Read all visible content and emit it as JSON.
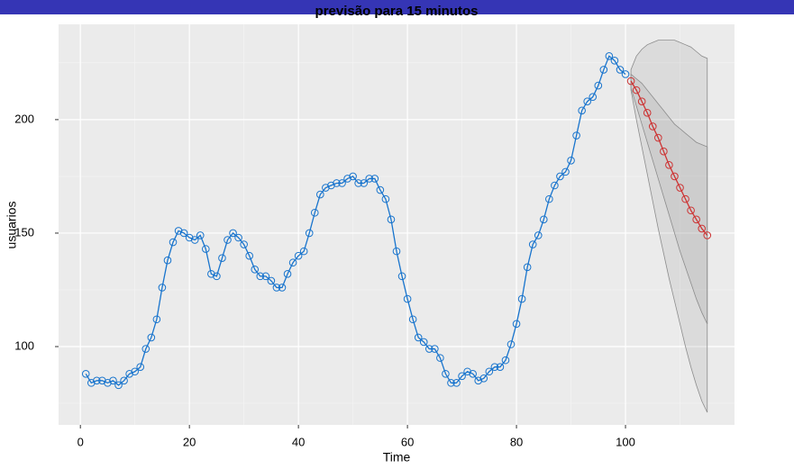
{
  "chart_data": {
    "type": "line",
    "title": "previsão para 15 minutos",
    "x_label": "Time",
    "y_label": "usuarios",
    "xlim": [
      -4,
      120
    ],
    "ylim": [
      65.5,
      242
    ],
    "xticks": [
      0,
      20,
      40,
      60,
      80,
      100
    ],
    "yticks": [
      100,
      150,
      200
    ],
    "xminor": [
      10,
      30,
      50,
      70,
      90,
      110
    ],
    "yminor": [
      75,
      125,
      175,
      225
    ],
    "grid": true,
    "bands": [
      {
        "color": "#808080",
        "x": [
          101,
          102,
          103,
          104,
          105,
          106,
          107,
          108,
          109,
          110,
          111,
          112,
          113,
          114,
          115
        ],
        "upper": [
          222,
          228,
          231,
          233,
          234,
          235,
          235,
          235,
          235,
          234,
          233,
          232,
          230,
          228,
          227
        ],
        "lower": [
          213,
          200,
          188,
          176,
          164,
          152,
          141,
          130,
          120,
          110,
          100,
          91,
          83,
          76,
          71
        ]
      },
      {
        "color": "#808080",
        "x": [
          101,
          102,
          103,
          104,
          105,
          106,
          107,
          108,
          109,
          110,
          111,
          112,
          113,
          114,
          115
        ],
        "upper": [
          220,
          218,
          216,
          213,
          210,
          207,
          204,
          201,
          198,
          196,
          194,
          192,
          190,
          189,
          188
        ],
        "lower": [
          214,
          206,
          198,
          190,
          182,
          174,
          166,
          158,
          150,
          142,
          135,
          128,
          121,
          115,
          110
        ]
      }
    ],
    "series": [
      {
        "color": "#1874cd",
        "x": [
          1,
          2,
          3,
          4,
          5,
          6,
          7,
          8,
          9,
          10,
          11,
          12,
          13,
          14,
          15,
          16,
          17,
          18,
          19,
          20,
          21,
          22,
          23,
          24,
          25,
          26,
          27,
          28,
          29,
          30,
          31,
          32,
          33,
          34,
          35,
          36,
          37,
          38,
          39,
          40,
          41,
          42,
          43,
          44,
          45,
          46,
          47,
          48,
          49,
          50,
          51,
          52,
          53,
          54,
          55,
          56,
          57,
          58,
          59,
          60,
          61,
          62,
          63,
          64,
          65,
          66,
          67,
          68,
          69,
          70,
          71,
          72,
          73,
          74,
          75,
          76,
          77,
          78,
          79,
          80,
          81,
          82,
          83,
          84,
          85,
          86,
          87,
          88,
          89,
          90,
          91,
          92,
          93,
          94,
          95,
          96,
          97,
          98,
          99,
          100
        ],
        "values": [
          88,
          84,
          85,
          85,
          84,
          85,
          83,
          85,
          88,
          89,
          91,
          99,
          104,
          112,
          126,
          138,
          146,
          151,
          150,
          148,
          147,
          149,
          143,
          132,
          131,
          139,
          147,
          150,
          148,
          145,
          140,
          134,
          131,
          131,
          129,
          126,
          126,
          132,
          137,
          140,
          142,
          150,
          159,
          167,
          170,
          171,
          172,
          172,
          174,
          175,
          172,
          172,
          174,
          174,
          169,
          165,
          156,
          142,
          131,
          121,
          112,
          104,
          102,
          99,
          99,
          95,
          88,
          84,
          84,
          87,
          89,
          88,
          85,
          86,
          89,
          91,
          91,
          94,
          101,
          110,
          121,
          135,
          145,
          149,
          156,
          165,
          171,
          175,
          177,
          182,
          193,
          204,
          208,
          210,
          215,
          222,
          228,
          226,
          222,
          220
        ]
      },
      {
        "color": "#cd3333",
        "x": [
          101,
          102,
          103,
          104,
          105,
          106,
          107,
          108,
          109,
          110,
          111,
          112,
          113,
          114,
          115
        ],
        "values": [
          217,
          213,
          208,
          203,
          197,
          192,
          186,
          180,
          175,
          170,
          165,
          160,
          156,
          152,
          149
        ]
      }
    ]
  }
}
